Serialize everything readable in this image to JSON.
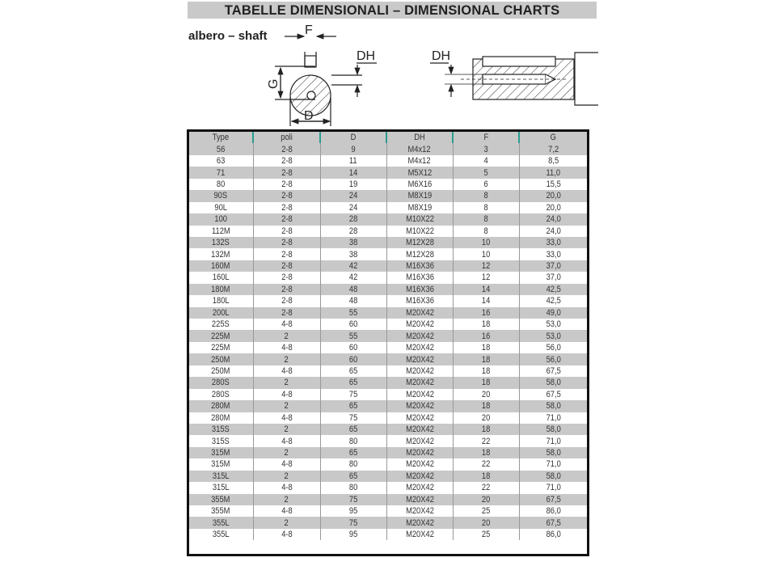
{
  "title": "TABELLE DIMENSIONALI – DIMENSIONAL CHARTS",
  "subtitle": "albero – shaft",
  "diagram_labels": {
    "F": "F",
    "DH": "DH",
    "G": "G",
    "D": "D"
  },
  "table": {
    "headers": [
      "Type",
      "poli",
      "D",
      "DH",
      "F",
      "G"
    ],
    "rows": [
      [
        "56",
        "2-8",
        "9",
        "M4x12",
        "3",
        "7,2"
      ],
      [
        "63",
        "2-8",
        "11",
        "M4x12",
        "4",
        "8,5"
      ],
      [
        "71",
        "2-8",
        "14",
        "M5X12",
        "5",
        "11,0"
      ],
      [
        "80",
        "2-8",
        "19",
        "M6X16",
        "6",
        "15,5"
      ],
      [
        "90S",
        "2-8",
        "24",
        "M8X19",
        "8",
        "20,0"
      ],
      [
        "90L",
        "2-8",
        "24",
        "M8X19",
        "8",
        "20,0"
      ],
      [
        "100",
        "2-8",
        "28",
        "M10X22",
        "8",
        "24,0"
      ],
      [
        "112M",
        "2-8",
        "28",
        "M10X22",
        "8",
        "24,0"
      ],
      [
        "132S",
        "2-8",
        "38",
        "M12X28",
        "10",
        "33,0"
      ],
      [
        "132M",
        "2-8",
        "38",
        "M12X28",
        "10",
        "33,0"
      ],
      [
        "160M",
        "2-8",
        "42",
        "M16X36",
        "12",
        "37,0"
      ],
      [
        "160L",
        "2-8",
        "42",
        "M16X36",
        "12",
        "37,0"
      ],
      [
        "180M",
        "2-8",
        "48",
        "M16X36",
        "14",
        "42,5"
      ],
      [
        "180L",
        "2-8",
        "48",
        "M16X36",
        "14",
        "42,5"
      ],
      [
        "200L",
        "2-8",
        "55",
        "M20X42",
        "16",
        "49,0"
      ],
      [
        "225S",
        "4-8",
        "60",
        "M20X42",
        "18",
        "53,0"
      ],
      [
        "225M",
        "2",
        "55",
        "M20X42",
        "16",
        "53,0"
      ],
      [
        "225M",
        "4-8",
        "60",
        "M20X42",
        "18",
        "56,0"
      ],
      [
        "250M",
        "2",
        "60",
        "M20X42",
        "18",
        "56,0"
      ],
      [
        "250M",
        "4-8",
        "65",
        "M20X42",
        "18",
        "67,5"
      ],
      [
        "280S",
        "2",
        "65",
        "M20X42",
        "18",
        "58,0"
      ],
      [
        "280S",
        "4-8",
        "75",
        "M20X42",
        "20",
        "67,5"
      ],
      [
        "280M",
        "2",
        "65",
        "M20X42",
        "18",
        "58,0"
      ],
      [
        "280M",
        "4-8",
        "75",
        "M20X42",
        "20",
        "71,0"
      ],
      [
        "315S",
        "2",
        "65",
        "M20X42",
        "18",
        "58,0"
      ],
      [
        "315S",
        "4-8",
        "80",
        "M20X42",
        "22",
        "71,0"
      ],
      [
        "315M",
        "2",
        "65",
        "M20X42",
        "18",
        "58,0"
      ],
      [
        "315M",
        "4-8",
        "80",
        "M20X42",
        "22",
        "71,0"
      ],
      [
        "315L",
        "2",
        "65",
        "M20X42",
        "18",
        "58,0"
      ],
      [
        "315L",
        "4-8",
        "80",
        "M20X42",
        "22",
        "71,0"
      ],
      [
        "355M",
        "2",
        "75",
        "M20X42",
        "20",
        "67,5"
      ],
      [
        "355M",
        "4-8",
        "95",
        "M20X42",
        "25",
        "86,0"
      ],
      [
        "355L",
        "2",
        "75",
        "M20X42",
        "20",
        "67,5"
      ],
      [
        "355L",
        "4-8",
        "95",
        "M20X42",
        "25",
        "86,0"
      ]
    ]
  }
}
